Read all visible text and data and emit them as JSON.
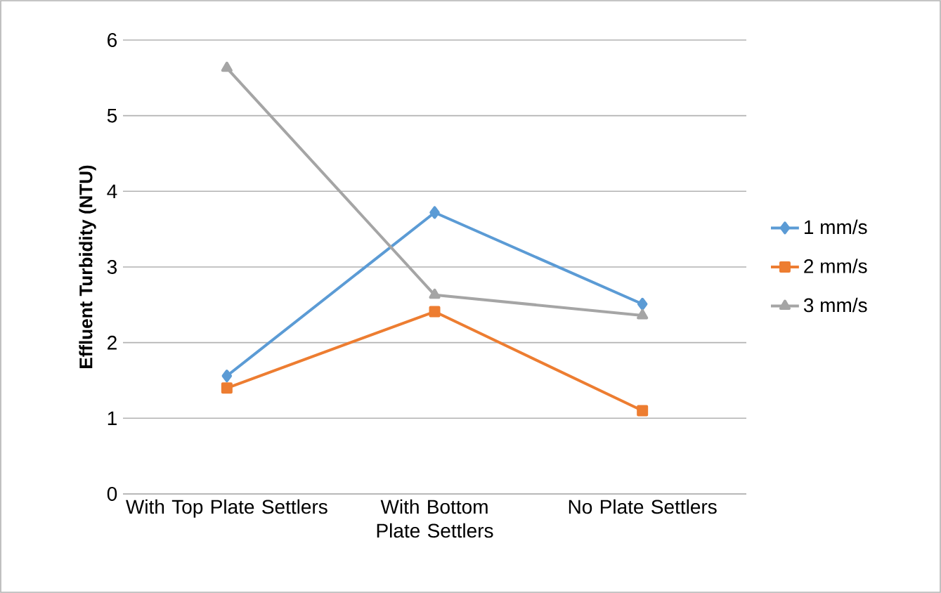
{
  "chart_data": {
    "type": "line",
    "ylabel": "Effluent Turbidity (NTU)",
    "categories": [
      "With Top Plate Settlers",
      "With Bottom Plate Settlers",
      "No Plate Settlers"
    ],
    "series": [
      {
        "name": "1 mm/s",
        "color": "#5b9bd5",
        "marker": "diamond",
        "values": [
          1.56,
          3.72,
          2.51
        ]
      },
      {
        "name": "2 mm/s",
        "color": "#ed7d31",
        "marker": "square",
        "values": [
          1.4,
          2.41,
          1.1
        ]
      },
      {
        "name": "3 mm/s",
        "color": "#a5a5a5",
        "marker": "triangle",
        "values": [
          5.63,
          2.63,
          2.36
        ]
      }
    ],
    "ylim": [
      0,
      6
    ],
    "yticks": [
      0,
      1,
      2,
      3,
      4,
      5,
      6
    ],
    "grid": "y",
    "legend": "right",
    "line_style": "solid"
  }
}
